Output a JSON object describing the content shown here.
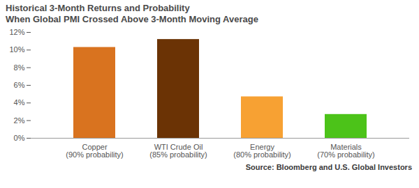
{
  "chart_data": {
    "type": "bar",
    "title": "Historical 3-Month Returns and Probability\nWhen Global PMI Crossed Above 3-Month Moving Average",
    "categories": [
      "Copper\n(90% probability)",
      "WTI Crude Oil\n(85% probability)",
      "Energy\n(80% probability)",
      "Materials\n(70% probability)"
    ],
    "values": [
      10.3,
      11.2,
      4.7,
      2.7
    ],
    "colors": [
      "#d9731f",
      "#6b3305",
      "#f7a133",
      "#4cc319"
    ],
    "ylim": [
      0,
      12
    ],
    "yticks": [
      {
        "value": 0,
        "label": "0%"
      },
      {
        "value": 2,
        "label": "2%"
      },
      {
        "value": 4,
        "label": "4%"
      },
      {
        "value": 6,
        "label": "6%"
      },
      {
        "value": 8,
        "label": "8%"
      },
      {
        "value": 10,
        "label": "10%"
      },
      {
        "value": 12,
        "label": "12%"
      }
    ],
    "grid": false,
    "caption": "Source: Bloomberg and U.S. Global Investors"
  }
}
